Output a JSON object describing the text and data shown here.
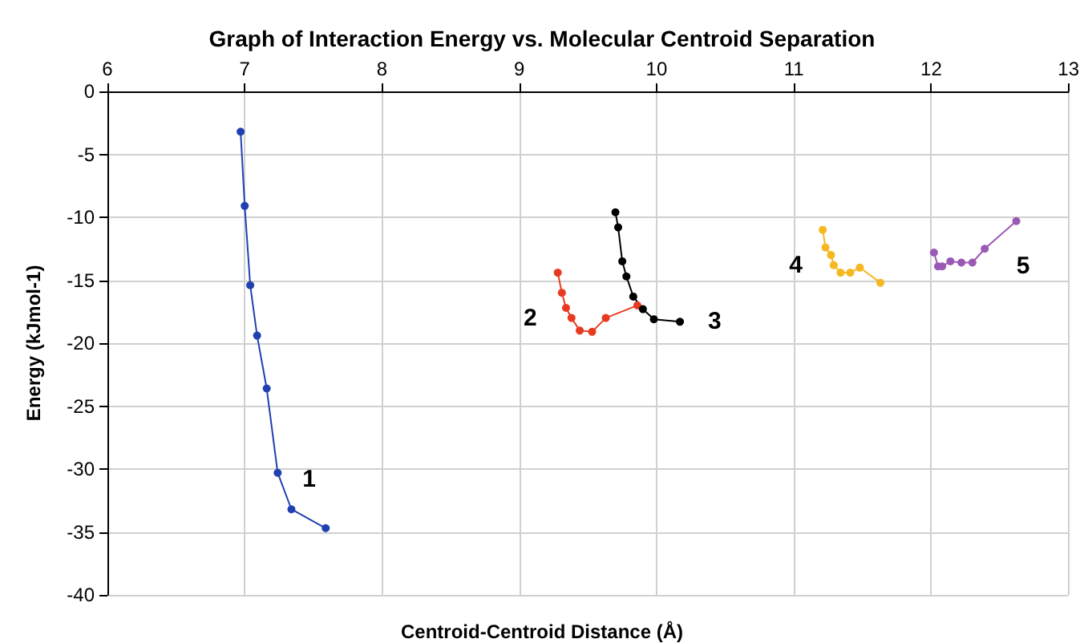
{
  "chart_data": {
    "type": "line",
    "title": "Graph of Interaction Energy vs. Molecular Centroid Separation",
    "xlabel": "Centroid-Centroid Distance (Å)",
    "ylabel": "Energy (kJmol-1)",
    "xlim": [
      6,
      13
    ],
    "xticks": [
      6,
      7,
      8,
      9,
      10,
      11,
      12,
      13
    ],
    "ylim": [
      -40,
      0
    ],
    "yticks": [
      -40,
      -35,
      -30,
      -25,
      -20,
      -15,
      -10,
      -5,
      0
    ],
    "grid": true,
    "legend": false,
    "marker": "circle",
    "line_style": "solid",
    "series": [
      {
        "name": "1",
        "color": "#2040b0",
        "x": [
          6.97,
          7.0,
          7.04,
          7.09,
          7.16,
          7.24,
          7.34,
          7.59
        ],
        "values": [
          -3.2,
          -9.1,
          -15.4,
          -19.4,
          -23.6,
          -30.3,
          -33.2,
          -34.7
        ]
      },
      {
        "name": "2",
        "color": "#e83a20",
        "x": [
          9.28,
          9.31,
          9.34,
          9.38,
          9.44,
          9.53,
          9.63,
          9.86
        ],
        "values": [
          -14.4,
          -16.0,
          -17.2,
          -18.0,
          -19.0,
          -19.1,
          -18.0,
          -17.0
        ]
      },
      {
        "name": "3",
        "color": "#000000",
        "x": [
          9.7,
          9.72,
          9.75,
          9.78,
          9.83,
          9.9,
          9.98,
          10.17
        ],
        "values": [
          -9.6,
          -10.8,
          -13.5,
          -14.7,
          -16.3,
          -17.3,
          -18.1,
          -18.3
        ]
      },
      {
        "name": "4",
        "color": "#f5b820",
        "x": [
          11.21,
          11.23,
          11.27,
          11.29,
          11.34,
          11.41,
          11.48,
          11.63
        ],
        "values": [
          -11.0,
          -12.4,
          -13.0,
          -13.8,
          -14.4,
          -14.4,
          -14.0,
          -15.2
        ]
      },
      {
        "name": "5",
        "color": "#9b59b6",
        "x": [
          12.02,
          12.05,
          12.08,
          12.14,
          12.22,
          12.3,
          12.39,
          12.62
        ],
        "values": [
          -12.8,
          -13.9,
          -13.9,
          -13.5,
          -13.6,
          -13.6,
          -12.5,
          -10.3
        ]
      }
    ]
  }
}
